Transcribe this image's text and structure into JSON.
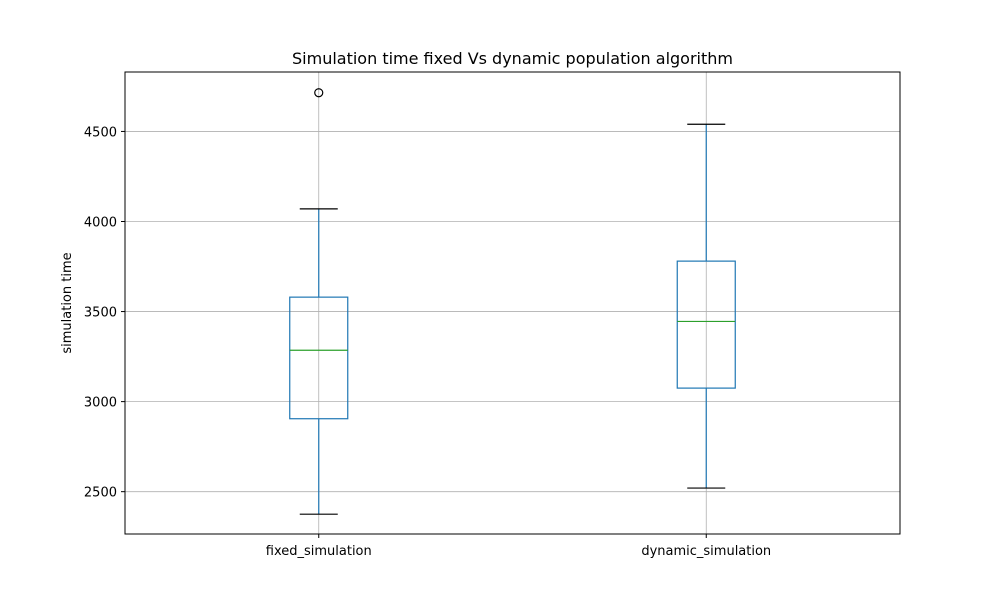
{
  "chart_data": {
    "type": "box",
    "title": "Simulation time fixed Vs dynamic population algorithm",
    "xlabel": "",
    "ylabel": "simulation time",
    "ylim": [
      2265,
      4830
    ],
    "yticks": [
      2500,
      3000,
      3500,
      4000,
      4500
    ],
    "grid": true,
    "categories": [
      "fixed_simulation",
      "dynamic_simulation"
    ],
    "boxes": [
      {
        "category": "fixed_simulation",
        "whisker_low": 2375,
        "q1": 2905,
        "median": 3285,
        "q3": 3580,
        "whisker_high": 4070,
        "outliers": [
          4715
        ]
      },
      {
        "category": "dynamic_simulation",
        "whisker_low": 2520,
        "q1": 3075,
        "median": 3445,
        "q3": 3780,
        "whisker_high": 4540,
        "outliers": []
      }
    ],
    "colors": {
      "box": "#1f77b4",
      "median": "#2ca02c",
      "whisker_cap": "#000000",
      "outlier": "#000000",
      "grid": "#b0b0b0"
    }
  }
}
